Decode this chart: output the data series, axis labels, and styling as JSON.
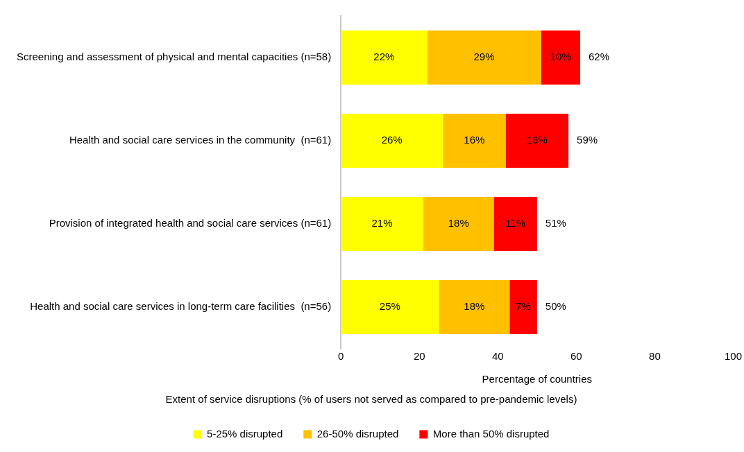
{
  "chart_data": {
    "type": "bar",
    "orientation": "horizontal",
    "stacked": true,
    "categories": [
      "Screening and assessment of physical and mental capacities (n=58)",
      "Health and social care services in the community  (n=61)",
      "Provision of integrated health and social care services (n=61)",
      "Health and social care services in long-term care facilities  (n=56)"
    ],
    "series": [
      {
        "name": "5-25% disrupted",
        "color": "#ffff00",
        "values": [
          22,
          26,
          21,
          25
        ],
        "value_labels": [
          "22%",
          "26%",
          "21%",
          "25%"
        ]
      },
      {
        "name": "26-50% disrupted",
        "color": "#ffc000",
        "values": [
          29,
          16,
          18,
          18
        ],
        "value_labels": [
          "29%",
          "16%",
          "18%",
          "18%"
        ]
      },
      {
        "name": "More than 50% disrupted",
        "color": "#ff0000",
        "values": [
          10,
          16,
          11,
          7
        ],
        "value_labels": [
          "10%",
          "16%",
          "11%",
          "7%"
        ]
      }
    ],
    "totals": [
      "62%",
      "59%",
      "51%",
      "50%"
    ],
    "xlim": [
      0,
      100
    ],
    "xticks": [
      0,
      20,
      40,
      60,
      80,
      100
    ],
    "xlabel": "Percentage of countries",
    "legend_title": "Extent of service disruptions (% of users not served as compared to pre-pandemic levels)",
    "legend": "bottom",
    "grid": false
  }
}
